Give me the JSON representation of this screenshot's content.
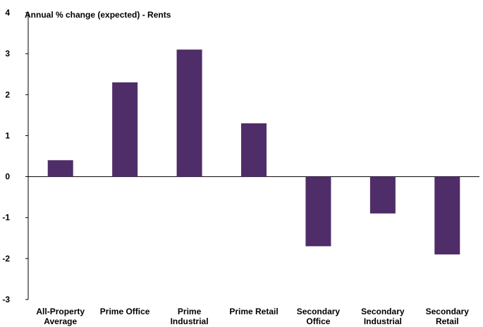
{
  "chart_data": {
    "type": "bar",
    "title": "Annual % change (expected) - Rents",
    "categories": [
      [
        "All-Property",
        "Average"
      ],
      [
        "Prime Office"
      ],
      [
        "Prime",
        "Industrial"
      ],
      [
        "Prime Retail"
      ],
      [
        "Secondary",
        "Office"
      ],
      [
        "Secondary",
        "Industrial"
      ],
      [
        "Secondary",
        "Retail"
      ]
    ],
    "values": [
      0.4,
      2.3,
      3.1,
      1.3,
      -1.7,
      -0.9,
      -1.9
    ],
    "ylim": [
      -3,
      4
    ],
    "yticks": [
      "4",
      "3",
      "2",
      "1",
      "0",
      "-1",
      "-2",
      "-3"
    ],
    "grid": false,
    "colors": {
      "bar": "#4f2d69",
      "axis": "#000000"
    }
  }
}
